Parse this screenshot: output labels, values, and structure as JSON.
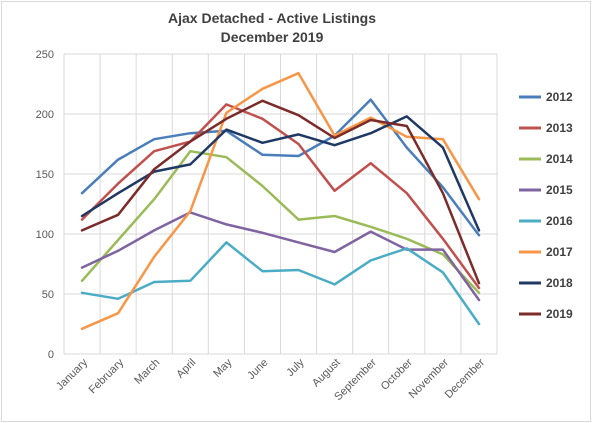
{
  "chart_data": {
    "type": "line",
    "title": "Ajax Detached - Active Listings",
    "subtitle": "December 2019",
    "xlabel": "",
    "ylabel": "",
    "ylim": [
      0,
      250
    ],
    "yticks": [
      "0",
      "50",
      "100",
      "150",
      "200",
      "250"
    ],
    "grid": true,
    "legend_position": "right",
    "categories": [
      "January",
      "February",
      "March",
      "April",
      "May",
      "June",
      "July",
      "August",
      "September",
      "October",
      "November",
      "December"
    ],
    "series": [
      {
        "name": "2012",
        "color": "#4a7ebb",
        "values": [
          134,
          162,
          179,
          184,
          186,
          166,
          165,
          182,
          212,
          172,
          139,
          99
        ]
      },
      {
        "name": "2013",
        "color": "#c0504d",
        "values": [
          112,
          142,
          169,
          177,
          208,
          196,
          175,
          136,
          159,
          134,
          96,
          55
        ]
      },
      {
        "name": "2014",
        "color": "#9bbb59",
        "values": [
          61,
          95,
          129,
          169,
          164,
          140,
          112,
          115,
          106,
          96,
          83,
          51
        ]
      },
      {
        "name": "2015",
        "color": "#8064a2",
        "values": [
          72,
          86,
          103,
          118,
          108,
          101,
          93,
          85,
          102,
          87,
          87,
          45
        ]
      },
      {
        "name": "2016",
        "color": "#4bacc6",
        "values": [
          51,
          46,
          60,
          61,
          93,
          69,
          70,
          58,
          78,
          88,
          68,
          25
        ]
      },
      {
        "name": "2017",
        "color": "#f79646",
        "values": [
          21,
          34,
          81,
          119,
          201,
          221,
          234,
          182,
          197,
          181,
          179,
          129
        ]
      },
      {
        "name": "2018",
        "color": "#1f3864",
        "values": [
          115,
          134,
          152,
          158,
          187,
          176,
          183,
          174,
          184,
          198,
          172,
          103
        ]
      },
      {
        "name": "2019",
        "color": "#7b2c2a",
        "values": [
          103,
          116,
          154,
          177,
          196,
          211,
          199,
          180,
          195,
          190,
          134,
          59
        ]
      }
    ]
  }
}
